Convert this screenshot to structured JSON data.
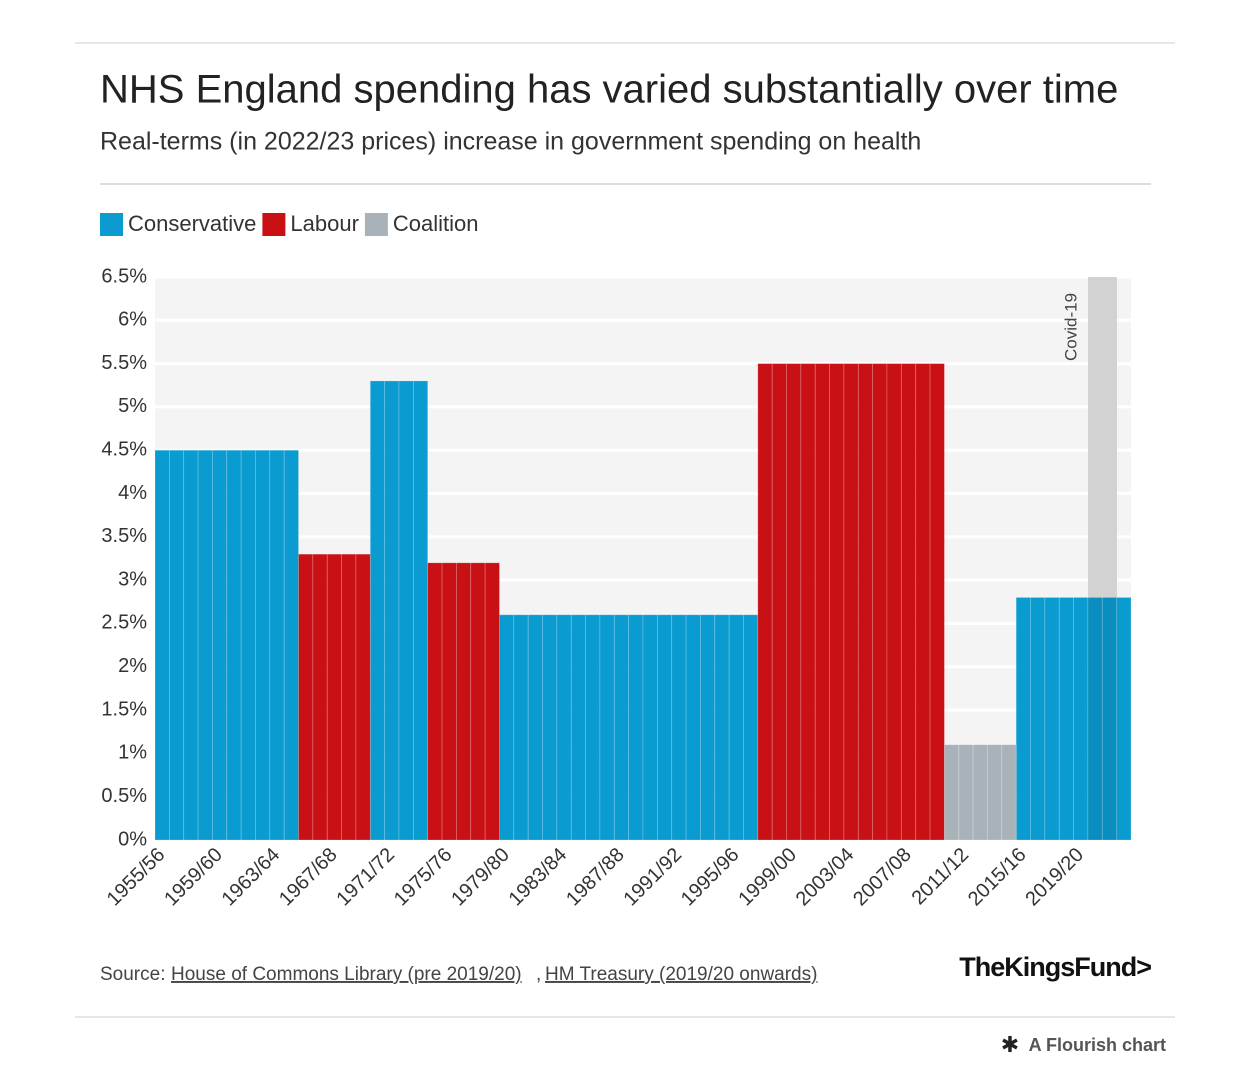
{
  "chart_data": {
    "type": "bar",
    "title": "NHS England spending has varied substantially over time",
    "subtitle": "Real-terms (in 2022/23 prices) increase in government spending on health",
    "categories": [
      "1955/56",
      null,
      null,
      null,
      "1959/60",
      null,
      null,
      null,
      "1963/64",
      null,
      null,
      null,
      "1967/68",
      null,
      null,
      null,
      "1971/72",
      null,
      null,
      null,
      "1975/76",
      null,
      null,
      null,
      "1979/80",
      null,
      null,
      null,
      "1983/84",
      null,
      null,
      null,
      "1987/88",
      null,
      null,
      null,
      "1991/92",
      null,
      null,
      null,
      "1995/96",
      null,
      null,
      null,
      "1999/00",
      null,
      null,
      null,
      "2003/04",
      null,
      null,
      null,
      "2007/08",
      null,
      null,
      null,
      "2011/12",
      null,
      null,
      null,
      "2015/16",
      null,
      null,
      null,
      "2019/20",
      null,
      null,
      null
    ],
    "series": [
      {
        "name": "Conservative",
        "color": "#0a9bd0",
        "values": [
          4.5,
          4.5,
          4.5,
          4.5,
          4.5,
          4.5,
          4.5,
          4.5,
          4.5,
          4.5,
          null,
          null,
          null,
          null,
          null,
          5.3,
          5.3,
          5.3,
          5.3,
          null,
          null,
          null,
          null,
          null,
          2.6,
          2.6,
          2.6,
          2.6,
          2.6,
          2.6,
          2.6,
          2.6,
          2.6,
          2.6,
          2.6,
          2.6,
          2.6,
          2.6,
          2.6,
          2.6,
          2.6,
          2.6,
          null,
          null,
          null,
          null,
          null,
          null,
          null,
          null,
          null,
          null,
          null,
          null,
          null,
          null,
          null,
          null,
          null,
          null,
          2.8,
          2.8,
          2.8,
          2.8,
          2.8,
          2.8,
          2.8,
          2.8
        ]
      },
      {
        "name": "Labour",
        "color": "#c91115",
        "values": [
          null,
          null,
          null,
          null,
          null,
          null,
          null,
          null,
          null,
          null,
          3.3,
          3.3,
          3.3,
          3.3,
          3.3,
          null,
          null,
          null,
          null,
          3.2,
          3.2,
          3.2,
          3.2,
          3.2,
          null,
          null,
          null,
          null,
          null,
          null,
          null,
          null,
          null,
          null,
          null,
          null,
          null,
          null,
          null,
          null,
          null,
          null,
          5.5,
          5.5,
          5.5,
          5.5,
          5.5,
          5.5,
          5.5,
          5.5,
          5.5,
          5.5,
          5.5,
          5.5,
          5.5,
          null,
          null,
          null,
          null,
          null,
          null,
          null,
          null,
          null,
          null,
          null,
          null,
          null
        ]
      },
      {
        "name": "Coalition",
        "color": "#aab2b9",
        "values": [
          null,
          null,
          null,
          null,
          null,
          null,
          null,
          null,
          null,
          null,
          null,
          null,
          null,
          null,
          null,
          null,
          null,
          null,
          null,
          null,
          null,
          null,
          null,
          null,
          null,
          null,
          null,
          null,
          null,
          null,
          null,
          null,
          null,
          null,
          null,
          null,
          null,
          null,
          null,
          null,
          null,
          null,
          null,
          null,
          null,
          null,
          null,
          null,
          null,
          null,
          null,
          null,
          null,
          null,
          null,
          1.1,
          1.1,
          1.1,
          1.1,
          1.1,
          null,
          null,
          null,
          null,
          null,
          null,
          null,
          null
        ]
      }
    ],
    "ylim": [
      0,
      6.5
    ],
    "yticks": [
      {
        "value": 0,
        "label": "0%"
      },
      {
        "value": 0.5,
        "label": "0.5%"
      },
      {
        "value": 1,
        "label": "1%"
      },
      {
        "value": 1.5,
        "label": "1.5%"
      },
      {
        "value": 2,
        "label": "2%"
      },
      {
        "value": 2.5,
        "label": "2.5%"
      },
      {
        "value": 3,
        "label": "3%"
      },
      {
        "value": 3.5,
        "label": "3.5%"
      },
      {
        "value": 4,
        "label": "4%"
      },
      {
        "value": 4.5,
        "label": "4.5%"
      },
      {
        "value": 5,
        "label": "5%"
      },
      {
        "value": 5.5,
        "label": "5.5%"
      },
      {
        "value": 6,
        "label": "6%"
      },
      {
        "value": 6.5,
        "label": "6.5%"
      }
    ],
    "grid": true,
    "annotation": "Covid-19",
    "source": {
      "prefix": "Source:",
      "links": [
        "House of Commons Library (pre 2019/20)",
        "HM Treasury (2019/20 onwards)"
      ],
      "separator": ","
    },
    "logo": "TheKingsFund>",
    "credit": "A Flourish chart"
  }
}
